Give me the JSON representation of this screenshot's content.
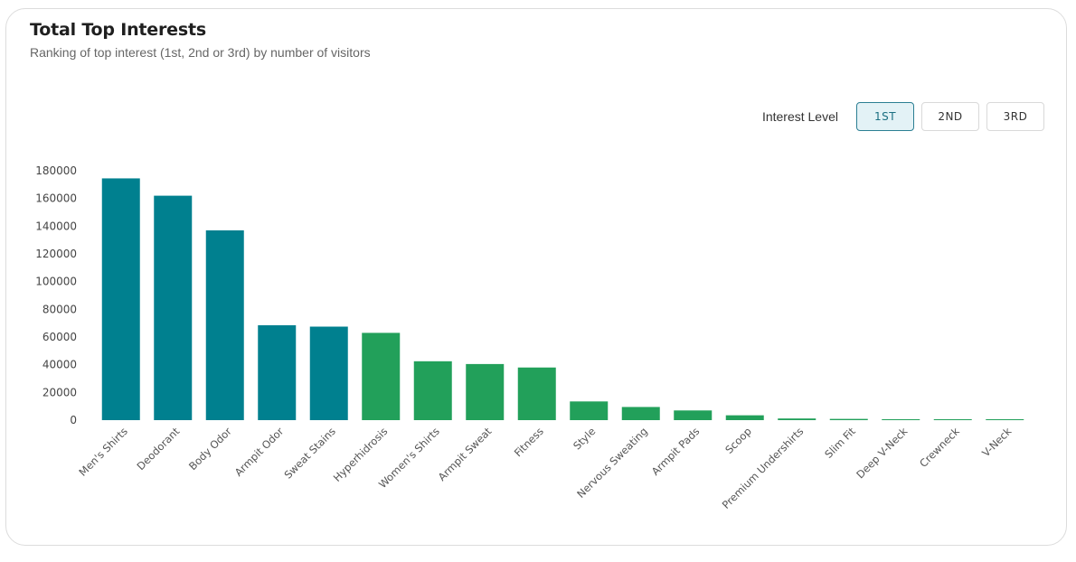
{
  "header": {
    "title": "Total Top Interests",
    "subtitle": "Ranking of top interest (1st, 2nd or 3rd) by number of visitors"
  },
  "controls": {
    "label": "Interest Level",
    "buttons": [
      {
        "label": "1ST",
        "active": true
      },
      {
        "label": "2ND",
        "active": false
      },
      {
        "label": "3RD",
        "active": false
      }
    ]
  },
  "colors": {
    "teal": "#00808f",
    "green": "#22a05a"
  },
  "chart_data": {
    "type": "bar",
    "categories": [
      "Men's Shirts",
      "Deodorant",
      "Body Odor",
      "Armpit Odor",
      "Sweat Stains",
      "Hyperhidrosis",
      "Women's Shirts",
      "Armpit Sweat",
      "Fitness",
      "Style",
      "Nervous Sweating",
      "Armpit Pads",
      "Scoop",
      "Premium Undershirts",
      "Slim Fit",
      "Deep V-Neck",
      "Crewneck",
      "V-Neck"
    ],
    "values": [
      174500,
      162000,
      137000,
      68500,
      67500,
      63000,
      42500,
      40500,
      38000,
      13500,
      9500,
      7000,
      3500,
      1200,
      900,
      400,
      300,
      200
    ],
    "bar_colors": [
      "teal",
      "teal",
      "teal",
      "teal",
      "teal",
      "green",
      "green",
      "green",
      "green",
      "green",
      "green",
      "green",
      "green",
      "green",
      "green",
      "green",
      "green",
      "green"
    ],
    "yticks": [
      0,
      20000,
      40000,
      60000,
      80000,
      100000,
      120000,
      140000,
      160000,
      180000
    ],
    "ylim": [
      0,
      180000
    ],
    "grid": false,
    "legend": "none"
  }
}
